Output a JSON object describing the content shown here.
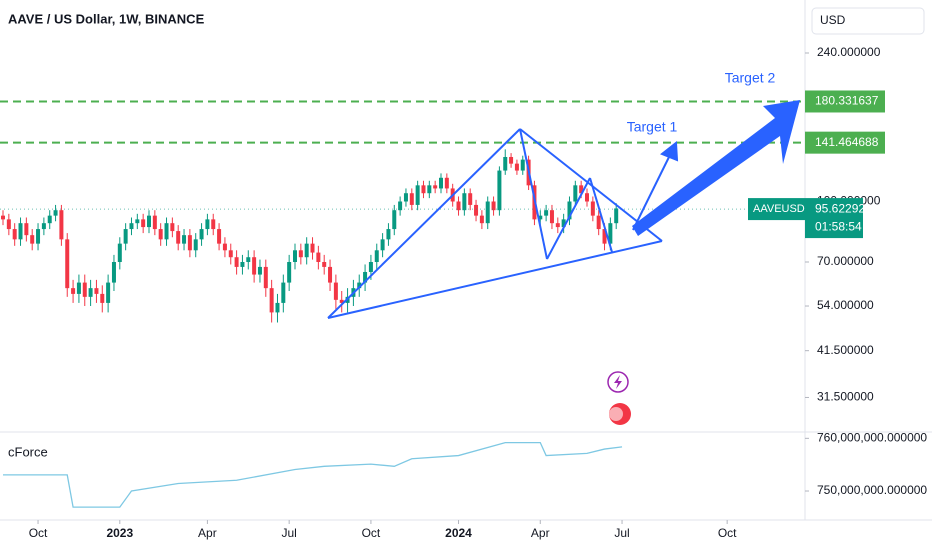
{
  "header": {
    "title": "AAVE / US Dollar, 1W, BINANCE",
    "currency": "USD"
  },
  "chart_data": [
    {
      "type": "candlestick",
      "symbol": "AAVEUSD",
      "log_scale": true,
      "up_color": "#089981",
      "down_color": "#f23645",
      "open": [
        92,
        90,
        85,
        80,
        88,
        82,
        78,
        85,
        88,
        92,
        95,
        80,
        60,
        58,
        62,
        57,
        60,
        58,
        55,
        62,
        70,
        78,
        85,
        88,
        90,
        86,
        92,
        85,
        80,
        88,
        84,
        78,
        82,
        75,
        80,
        85,
        90,
        85,
        78,
        75,
        72,
        68,
        70,
        72,
        65,
        68,
        60,
        52,
        55,
        62,
        70,
        75,
        72,
        78,
        74,
        70,
        68,
        62,
        56,
        55,
        57,
        60,
        62,
        66,
        70,
        75,
        80,
        85,
        95,
        100,
        105,
        98,
        110,
        105,
        110,
        108,
        115,
        108,
        100,
        95,
        105,
        98,
        92,
        88,
        100,
        95,
        120,
        130,
        125,
        120,
        128,
        110,
        90,
        92,
        95,
        88,
        86,
        90,
        100,
        110,
        105,
        100,
        92,
        85,
        78,
        88
      ],
      "high": [
        95,
        93,
        88,
        91,
        91,
        85,
        88,
        91,
        95,
        98,
        98,
        83,
        63,
        65,
        65,
        63,
        63,
        61,
        65,
        73,
        81,
        88,
        91,
        93,
        93,
        95,
        95,
        88,
        91,
        91,
        87,
        85,
        85,
        83,
        88,
        93,
        93,
        88,
        81,
        78,
        75,
        73,
        75,
        75,
        71,
        71,
        63,
        58,
        65,
        73,
        78,
        78,
        81,
        81,
        77,
        73,
        71,
        65,
        59,
        60,
        63,
        65,
        69,
        73,
        78,
        83,
        88,
        98,
        103,
        108,
        108,
        113,
        113,
        113,
        113,
        118,
        118,
        111,
        103,
        108,
        108,
        101,
        95,
        103,
        103,
        123,
        136,
        133,
        128,
        131,
        131,
        113,
        95,
        98,
        98,
        91,
        93,
        103,
        113,
        113,
        108,
        103,
        95,
        88,
        91,
        99
      ],
      "low": [
        87,
        82,
        77,
        77,
        79,
        75,
        75,
        82,
        85,
        89,
        77,
        57,
        55,
        55,
        54,
        54,
        55,
        52,
        52,
        59,
        67,
        75,
        82,
        85,
        83,
        83,
        82,
        77,
        77,
        81,
        75,
        75,
        72,
        72,
        77,
        82,
        82,
        75,
        72,
        69,
        65,
        65,
        67,
        62,
        62,
        57,
        49,
        49,
        52,
        59,
        67,
        69,
        69,
        71,
        67,
        65,
        59,
        53,
        52,
        52,
        54,
        57,
        59,
        63,
        67,
        72,
        77,
        82,
        92,
        97,
        95,
        95,
        102,
        102,
        105,
        105,
        105,
        97,
        92,
        92,
        95,
        89,
        85,
        85,
        92,
        92,
        117,
        122,
        117,
        117,
        107,
        87,
        87,
        89,
        85,
        83,
        83,
        87,
        97,
        102,
        97,
        89,
        82,
        75,
        75,
        85
      ],
      "close": [
        90,
        85,
        80,
        88,
        82,
        78,
        85,
        88,
        92,
        95,
        80,
        60,
        58,
        62,
        57,
        60,
        58,
        55,
        62,
        70,
        78,
        85,
        88,
        90,
        86,
        92,
        85,
        80,
        88,
        84,
        78,
        82,
        75,
        80,
        85,
        90,
        85,
        78,
        75,
        72,
        68,
        70,
        72,
        65,
        68,
        60,
        52,
        55,
        62,
        70,
        75,
        72,
        78,
        74,
        70,
        68,
        62,
        56,
        55,
        57,
        60,
        62,
        66,
        70,
        75,
        80,
        85,
        95,
        100,
        105,
        98,
        110,
        105,
        110,
        108,
        115,
        108,
        100,
        95,
        105,
        98,
        92,
        88,
        100,
        95,
        120,
        130,
        125,
        120,
        128,
        110,
        90,
        92,
        95,
        88,
        86,
        90,
        100,
        110,
        105,
        100,
        92,
        85,
        78,
        88,
        96
      ],
      "ylim": [
        26,
        328
      ],
      "yticks": [
        {
          "value": 240,
          "label": "240.000000"
        },
        {
          "value": 100,
          "label": "100.000000"
        },
        {
          "value": 70,
          "label": "70.000000"
        },
        {
          "value": 54,
          "label": "54.000000"
        },
        {
          "value": 41.5,
          "label": "41.500000"
        },
        {
          "value": 31.5,
          "label": "31.500000"
        }
      ],
      "xticks": [
        {
          "value": 6,
          "label": "Oct"
        },
        {
          "value": 20,
          "label": "2023"
        },
        {
          "value": 35,
          "label": "Apr"
        },
        {
          "value": 49,
          "label": "Jul"
        },
        {
          "value": 63,
          "label": "Oct"
        },
        {
          "value": 78,
          "label": "2024"
        },
        {
          "value": 92,
          "label": "Apr"
        },
        {
          "value": 106,
          "label": "Jul"
        },
        {
          "value": 124,
          "label": "Oct"
        }
      ],
      "levels": [
        {
          "value": 180.331637,
          "label": "180.331637",
          "color": "#4caf50"
        },
        {
          "value": 141.464688,
          "label": "141.464688",
          "color": "#4caf50"
        }
      ],
      "last_price": {
        "value": 95.622929,
        "label": "95.622929",
        "countdown": "01:58:54",
        "color": "#089981"
      },
      "annotations": [
        "Target 1",
        "Target 2"
      ]
    },
    {
      "type": "line",
      "title": "cForce",
      "color": "#7ec8e3",
      "x": [
        0,
        11,
        12,
        20,
        22,
        30,
        40,
        50,
        55,
        63,
        67,
        70,
        78,
        86,
        92,
        93,
        100,
        103,
        106
      ],
      "values": [
        753060000,
        753060000,
        746940000,
        746940000,
        750000000,
        751430000,
        752040000,
        754080000,
        754690000,
        755100000,
        754690000,
        756120000,
        756730000,
        759180000,
        759180000,
        756730000,
        757140000,
        757960000,
        758370000
      ],
      "ylim": [
        744500000,
        761200000
      ],
      "yticks": [
        {
          "value": 760000000,
          "label": "760,000,000.000000"
        },
        {
          "value": 750000000,
          "label": "750,000,000.000000"
        }
      ]
    }
  ]
}
